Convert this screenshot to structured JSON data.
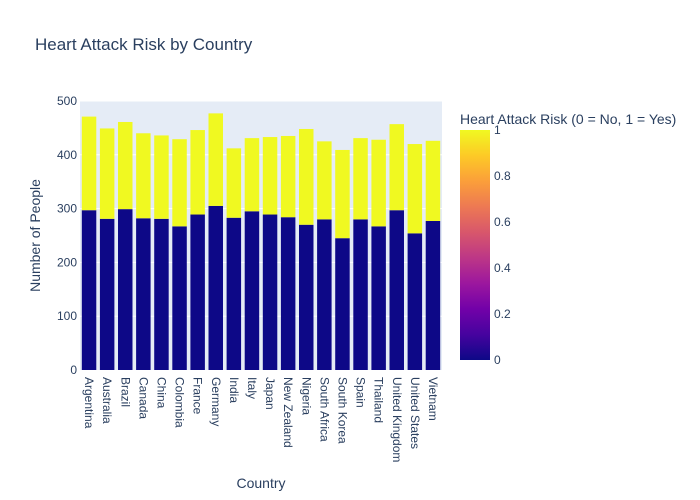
{
  "chart_data": {
    "type": "bar",
    "title": "Heart Attack Risk by Country",
    "xlabel": "Country",
    "ylabel": "Number of People",
    "ylim": [
      0,
      500
    ],
    "yticks": [
      0,
      100,
      200,
      300,
      400,
      500
    ],
    "grid": true,
    "stacked": true,
    "categories": [
      "Argentina",
      "Australia",
      "Brazil",
      "Canada",
      "China",
      "Colombia",
      "France",
      "Germany",
      "India",
      "Italy",
      "Japan",
      "New Zealand",
      "Nigeria",
      "South Africa",
      "South Korea",
      "Spain",
      "Thailand",
      "United Kingdom",
      "United States",
      "Vietnam"
    ],
    "series": [
      {
        "value": 0,
        "color": "#0d0887",
        "values": [
          297,
          281,
          299,
          282,
          281,
          267,
          289,
          305,
          283,
          295,
          289,
          284,
          270,
          280,
          245,
          280,
          267,
          297,
          254,
          277
        ]
      },
      {
        "value": 1,
        "color": "#f0f921",
        "values": [
          174,
          168,
          162,
          158,
          155,
          162,
          157,
          172,
          129,
          136,
          144,
          151,
          178,
          145,
          164,
          151,
          161,
          160,
          166,
          149
        ]
      }
    ],
    "colorbar": {
      "title": "Heart Attack Risk (0 = No, 1 = Yes)",
      "ticks": [
        "0",
        "0.2",
        "0.4",
        "0.6",
        "0.8",
        "1"
      ],
      "range": [
        0,
        1
      ],
      "colorscale": [
        "#0d0887",
        "#46039f",
        "#7201a8",
        "#9c179e",
        "#bd3786",
        "#d8576b",
        "#ed7953",
        "#fb9f3a",
        "#fdca26",
        "#f0f921"
      ]
    },
    "plot_bg": "#e5ecf6"
  }
}
